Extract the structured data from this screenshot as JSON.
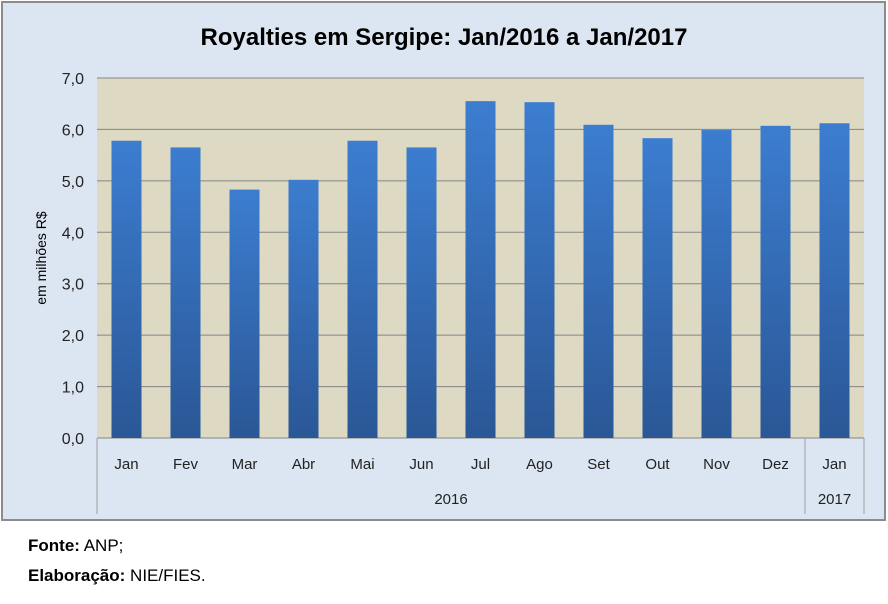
{
  "chart_data": {
    "type": "bar",
    "title": "Royalties em Sergipe: Jan/2016 a Jan/2017",
    "ylabel": "em milhões R$",
    "xlabel": "",
    "ylim": [
      0,
      7
    ],
    "yticks": [
      "0,0",
      "1,0",
      "2,0",
      "3,0",
      "4,0",
      "5,0",
      "6,0",
      "7,0"
    ],
    "categories": [
      "Jan",
      "Fev",
      "Mar",
      "Abr",
      "Mai",
      "Jun",
      "Jul",
      "Ago",
      "Set",
      "Out",
      "Nov",
      "Dez",
      "Jan"
    ],
    "groups": [
      {
        "label": "2016",
        "count": 12
      },
      {
        "label": "2017",
        "count": 1
      }
    ],
    "values": [
      5.78,
      5.65,
      4.83,
      5.02,
      5.78,
      5.65,
      6.55,
      6.53,
      6.09,
      5.83,
      5.99,
      6.07,
      6.12
    ],
    "grid": true,
    "colors": {
      "bar_top": "#3c7dd0",
      "bar_bottom": "#2a5796",
      "plot_bg": "#ddd9c3",
      "chart_bg": "#dce6f2"
    }
  },
  "footer": {
    "source_label": "Fonte:",
    "source_value": " ANP;",
    "elab_label": "Elaboração:",
    "elab_value": " NIE/FIES."
  }
}
